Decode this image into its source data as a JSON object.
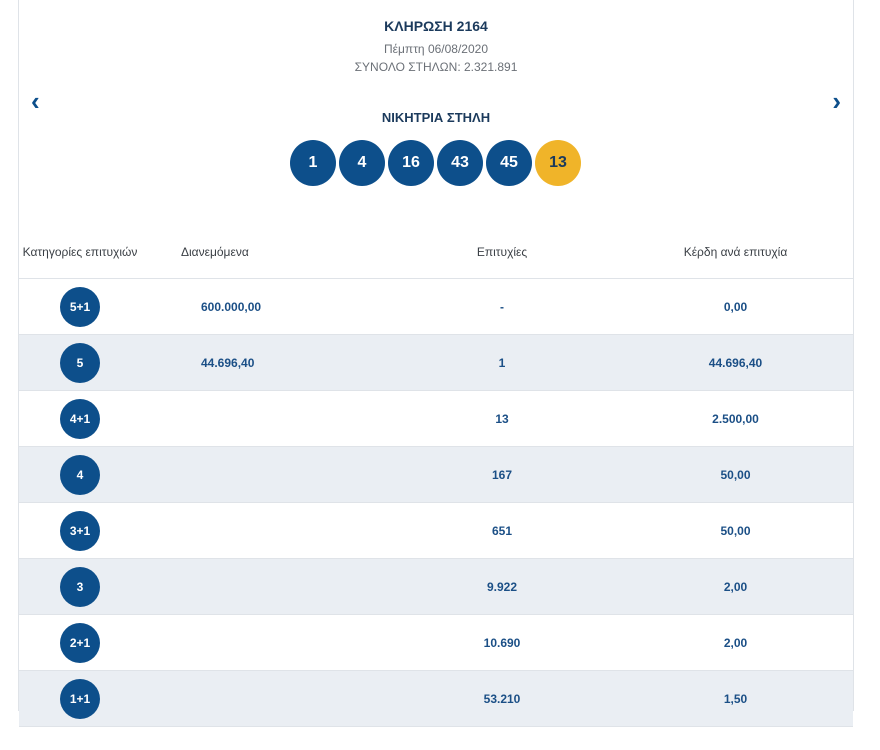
{
  "draw": {
    "title": "ΚΛΗΡΩΣΗ 2164",
    "date": "Πέμπτη 06/08/2020",
    "total": "ΣΥΝΟΛΟ ΣΤΗΛΩΝ: 2.321.891"
  },
  "nav": {
    "prev": "‹",
    "next": "›"
  },
  "winning": {
    "title": "ΝΙΚΗΤΡΙΑ ΣΤΗΛΗ",
    "numbers": [
      "1",
      "4",
      "16",
      "43",
      "45"
    ],
    "joker": "13"
  },
  "colors": {
    "primary": "#0d4f8b",
    "joker": "#f0b429",
    "alt_row": "#eaeef3"
  },
  "table": {
    "headers": [
      "Κατηγορίες επιτυχιών",
      "Διανεμόμενα",
      "Επιτυχίες",
      "Κέρδη ανά επιτυχία"
    ],
    "rows": [
      {
        "cat": "5+1",
        "dist": "600.000,00",
        "wins": "-",
        "prize": "0,00"
      },
      {
        "cat": "5",
        "dist": "44.696,40",
        "wins": "1",
        "prize": "44.696,40"
      },
      {
        "cat": "4+1",
        "dist": "",
        "wins": "13",
        "prize": "2.500,00"
      },
      {
        "cat": "4",
        "dist": "",
        "wins": "167",
        "prize": "50,00"
      },
      {
        "cat": "3+1",
        "dist": "",
        "wins": "651",
        "prize": "50,00"
      },
      {
        "cat": "3",
        "dist": "",
        "wins": "9.922",
        "prize": "2,00"
      },
      {
        "cat": "2+1",
        "dist": "",
        "wins": "10.690",
        "prize": "2,00"
      },
      {
        "cat": "1+1",
        "dist": "",
        "wins": "53.210",
        "prize": "1,50"
      }
    ]
  }
}
